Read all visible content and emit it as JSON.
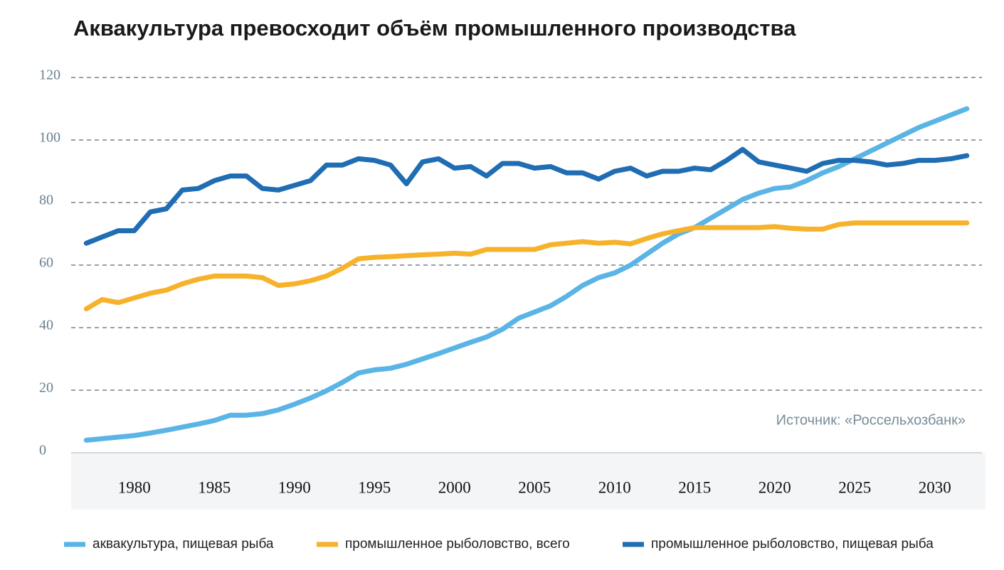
{
  "chart_data": {
    "type": "line",
    "title": "Аквакультура превосходит объём промышленного производства",
    "annotation": "Источник: «Россельхозбанк»",
    "x": [
      1977,
      1978,
      1979,
      1980,
      1981,
      1982,
      1983,
      1984,
      1985,
      1986,
      1987,
      1988,
      1989,
      1990,
      1991,
      1992,
      1993,
      1994,
      1995,
      1996,
      1997,
      1998,
      1999,
      2000,
      2001,
      2002,
      2003,
      2004,
      2005,
      2006,
      2007,
      2008,
      2009,
      2010,
      2011,
      2012,
      2013,
      2014,
      2015,
      2016,
      2017,
      2018,
      2019,
      2020,
      2021,
      2022,
      2023,
      2024,
      2025,
      2026,
      2027,
      2028,
      2029,
      2030,
      2031,
      2032
    ],
    "series": [
      {
        "name": "аквакультура, пищевая рыба",
        "color": "#5ab4e5",
        "values": [
          4,
          4.5,
          5,
          5.5,
          6.3,
          7.2,
          8.2,
          9.2,
          10.3,
          12,
          12,
          12.5,
          13.7,
          15.5,
          17.5,
          19.8,
          22.5,
          25.5,
          26.5,
          27,
          28.3,
          30,
          31.7,
          33.5,
          35.3,
          37,
          39.5,
          43,
          45,
          47,
          50,
          53.5,
          56,
          57.5,
          60,
          63.5,
          67,
          70,
          72,
          75,
          78,
          81,
          83,
          84.5,
          85,
          87,
          89.5,
          91.5,
          94,
          96.5,
          99,
          101.5,
          104,
          106,
          108,
          110
        ]
      },
      {
        "name": "промышленное рыболовство, всего",
        "color": "#f7b22c",
        "values": [
          46,
          49,
          48,
          49.5,
          51,
          52,
          54,
          55.5,
          56.5,
          56.5,
          56.5,
          56,
          53.5,
          54,
          55,
          56.5,
          59,
          62,
          62.5,
          62.7,
          63,
          63.3,
          63.5,
          63.8,
          63.5,
          65,
          65,
          65,
          65,
          66.5,
          67,
          67.5,
          67,
          67.3,
          66.8,
          68.5,
          70,
          71,
          72,
          72,
          72,
          72,
          72,
          72.3,
          71.8,
          71.5,
          71.5,
          73,
          73.5,
          73.5,
          73.5,
          73.5,
          73.5,
          73.5,
          73.5,
          73.5
        ]
      },
      {
        "name": "промышленное рыболовство, пищевая рыба",
        "color": "#1f6db3",
        "values": [
          67,
          69,
          71,
          71,
          77,
          78,
          84,
          84.5,
          87,
          88.5,
          88.5,
          84.5,
          84,
          85.5,
          87,
          92,
          92,
          94,
          93.5,
          92,
          86,
          93,
          94,
          91,
          91.5,
          88.5,
          92.5,
          92.5,
          91,
          91.5,
          89.5,
          89.5,
          87.5,
          90,
          91,
          88.5,
          90,
          90,
          91,
          90.5,
          93.5,
          97,
          93,
          92,
          91,
          90,
          92.5,
          93.5,
          93.5,
          93,
          92,
          92.5,
          93.5,
          93.5,
          94,
          95
        ]
      }
    ],
    "xlim": [
      1976.5,
      2032.5
    ],
    "xticks": [
      1980,
      1985,
      1990,
      1995,
      2000,
      2005,
      2010,
      2015,
      2020,
      2025,
      2030
    ],
    "ylim": [
      0,
      120
    ],
    "yticks": [
      0,
      20,
      40,
      60,
      80,
      100,
      120
    ],
    "grid": true
  }
}
